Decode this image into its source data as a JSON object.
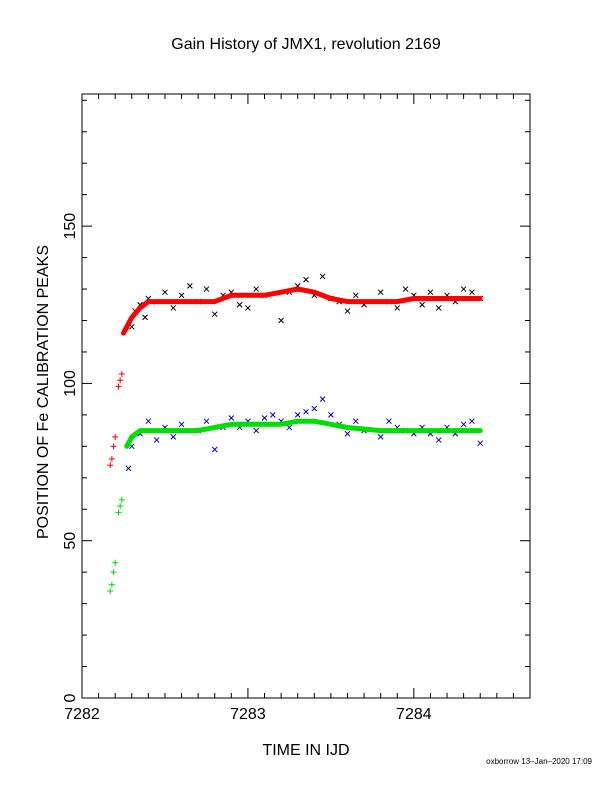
{
  "header": {
    "title": "Gain History of JMX1, revolution 2169"
  },
  "footer": {
    "credit": "oxborrow 13–Jan–2020 17:09"
  },
  "colors": {
    "upper_points": "#000000",
    "upper_fit": "#ff0000",
    "lower_points": "#0000cc",
    "lower_fit": "#00dd00",
    "axes": "#000000"
  },
  "chart_data": {
    "type": "scatter",
    "title": "Gain History of JMX1, revolution 2169",
    "xlabel": "TIME IN IJD",
    "ylabel": "POSITION OF Fe CALIBRATION PEAKS",
    "xlim": [
      7282.0,
      7284.7
    ],
    "ylim": [
      0,
      192
    ],
    "x_ticks": [
      7282,
      7283,
      7284
    ],
    "x_tick_labels": [
      "7282",
      "7283",
      "7284"
    ],
    "y_ticks": [
      0,
      50,
      100,
      150
    ],
    "y_tick_labels": [
      "0",
      "50",
      "100",
      "150"
    ],
    "grid": false,
    "legend": "none",
    "series": [
      {
        "marker": "x",
        "color": "#000000",
        "points": [
          [
            7282.3,
            118
          ],
          [
            7282.32,
            123
          ],
          [
            7282.35,
            125
          ],
          [
            7282.38,
            121
          ],
          [
            7282.4,
            127
          ],
          [
            7282.45,
            126
          ],
          [
            7282.5,
            129
          ],
          [
            7282.55,
            124
          ],
          [
            7282.6,
            128
          ],
          [
            7282.65,
            131
          ],
          [
            7282.7,
            126
          ],
          [
            7282.75,
            130
          ],
          [
            7282.8,
            122
          ],
          [
            7282.85,
            128
          ],
          [
            7282.9,
            129
          ],
          [
            7282.95,
            125
          ],
          [
            7283.0,
            124
          ],
          [
            7283.05,
            130
          ],
          [
            7283.1,
            128
          ],
          [
            7283.2,
            120
          ],
          [
            7283.25,
            129
          ],
          [
            7283.3,
            131
          ],
          [
            7283.35,
            133
          ],
          [
            7283.4,
            128
          ],
          [
            7283.45,
            134
          ],
          [
            7283.5,
            127
          ],
          [
            7283.55,
            126
          ],
          [
            7283.6,
            123
          ],
          [
            7283.65,
            128
          ],
          [
            7283.7,
            125
          ],
          [
            7283.8,
            129
          ],
          [
            7283.85,
            126
          ],
          [
            7283.9,
            124
          ],
          [
            7283.95,
            130
          ],
          [
            7284.0,
            128
          ],
          [
            7284.05,
            125
          ],
          [
            7284.1,
            129
          ],
          [
            7284.15,
            124
          ],
          [
            7284.2,
            128
          ],
          [
            7284.25,
            126
          ],
          [
            7284.3,
            130
          ],
          [
            7284.35,
            129
          ],
          [
            7284.4,
            127
          ]
        ]
      },
      {
        "marker": "line",
        "color": "#ff0000",
        "points": [
          [
            7282.25,
            116
          ],
          [
            7282.3,
            121
          ],
          [
            7282.35,
            124
          ],
          [
            7282.4,
            126
          ],
          [
            7282.6,
            126
          ],
          [
            7282.8,
            126
          ],
          [
            7282.9,
            128
          ],
          [
            7283.0,
            128
          ],
          [
            7283.1,
            128
          ],
          [
            7283.2,
            129
          ],
          [
            7283.3,
            130
          ],
          [
            7283.4,
            129
          ],
          [
            7283.5,
            127
          ],
          [
            7283.6,
            126
          ],
          [
            7283.8,
            126
          ],
          [
            7283.9,
            126
          ],
          [
            7284.0,
            127
          ],
          [
            7284.2,
            127
          ],
          [
            7284.4,
            127
          ]
        ]
      },
      {
        "marker": "+",
        "color": "#ff0000",
        "points": [
          [
            7282.17,
            74
          ],
          [
            7282.18,
            76
          ],
          [
            7282.19,
            80
          ],
          [
            7282.2,
            83
          ],
          [
            7282.22,
            99
          ],
          [
            7282.23,
            101
          ],
          [
            7282.24,
            103
          ]
        ]
      },
      {
        "marker": "x",
        "color": "#0000cc",
        "points": [
          [
            7282.28,
            73
          ],
          [
            7282.3,
            80
          ],
          [
            7282.35,
            84
          ],
          [
            7282.4,
            88
          ],
          [
            7282.45,
            82
          ],
          [
            7282.5,
            86
          ],
          [
            7282.55,
            83
          ],
          [
            7282.6,
            87
          ],
          [
            7282.7,
            85
          ],
          [
            7282.75,
            88
          ],
          [
            7282.8,
            79
          ],
          [
            7282.85,
            86
          ],
          [
            7282.9,
            89
          ],
          [
            7282.95,
            86
          ],
          [
            7283.0,
            88
          ],
          [
            7283.05,
            85
          ],
          [
            7283.1,
            89
          ],
          [
            7283.15,
            90
          ],
          [
            7283.2,
            88
          ],
          [
            7283.25,
            86
          ],
          [
            7283.3,
            90
          ],
          [
            7283.35,
            91
          ],
          [
            7283.4,
            92
          ],
          [
            7283.45,
            95
          ],
          [
            7283.5,
            90
          ],
          [
            7283.55,
            87
          ],
          [
            7283.6,
            84
          ],
          [
            7283.65,
            88
          ],
          [
            7283.7,
            85
          ],
          [
            7283.8,
            83
          ],
          [
            7283.85,
            88
          ],
          [
            7283.9,
            86
          ],
          [
            7283.95,
            85
          ],
          [
            7284.0,
            84
          ],
          [
            7284.05,
            86
          ],
          [
            7284.1,
            84
          ],
          [
            7284.15,
            82
          ],
          [
            7284.2,
            86
          ],
          [
            7284.25,
            84
          ],
          [
            7284.3,
            87
          ],
          [
            7284.35,
            88
          ],
          [
            7284.4,
            81
          ]
        ]
      },
      {
        "marker": "line",
        "color": "#00dd00",
        "points": [
          [
            7282.27,
            80
          ],
          [
            7282.3,
            83
          ],
          [
            7282.35,
            85
          ],
          [
            7282.5,
            85
          ],
          [
            7282.7,
            85
          ],
          [
            7282.9,
            87
          ],
          [
            7283.0,
            87
          ],
          [
            7283.2,
            87
          ],
          [
            7283.3,
            88
          ],
          [
            7283.4,
            88
          ],
          [
            7283.5,
            87
          ],
          [
            7283.6,
            86
          ],
          [
            7283.8,
            85
          ],
          [
            7284.0,
            85
          ],
          [
            7284.2,
            85
          ],
          [
            7284.4,
            85
          ]
        ]
      },
      {
        "marker": "+",
        "color": "#00dd00",
        "points": [
          [
            7282.17,
            34
          ],
          [
            7282.18,
            36
          ],
          [
            7282.19,
            40
          ],
          [
            7282.2,
            43
          ],
          [
            7282.22,
            59
          ],
          [
            7282.23,
            61
          ],
          [
            7282.24,
            63
          ]
        ]
      }
    ]
  }
}
